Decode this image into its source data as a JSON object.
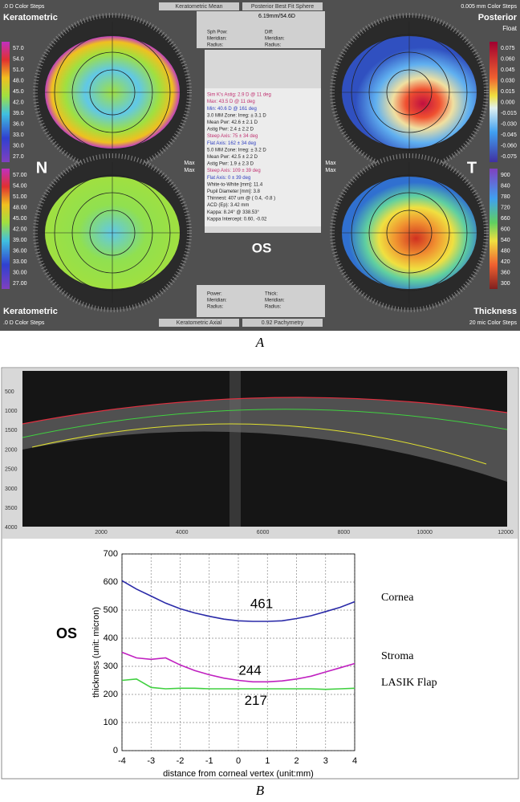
{
  "panel_a": {
    "top_left_steps": ".0 D Color Steps",
    "top_left_title": "Keratometric",
    "top_mid_left": "Keratometric Mean",
    "top_mid_right": "Posterior Best Fit Sphere",
    "bfs": "6.19mm/54.6D",
    "top_left_fields": [
      "Sph Pow:",
      "Meridian:",
      "Radius:"
    ],
    "top_right_fields": [
      "Diff:",
      "Meridian:",
      "Radius:"
    ],
    "top_right_steps": "0.005 mm Color Steps",
    "top_right_title": "Posterior",
    "top_right_sub": "Float",
    "scale_top_left": [
      "57.0",
      "54.0",
      "51.0",
      "48.0",
      "45.0",
      "42.0",
      "39.0",
      "36.0",
      "33.0",
      "30.0",
      "27.0"
    ],
    "scale_bottom_left": [
      "57.00",
      "54.00",
      "51.00",
      "48.00",
      "45.00",
      "42.00",
      "39.00",
      "36.00",
      "33.00",
      "30.00",
      "27.00"
    ],
    "scale_top_right": [
      "0.075",
      "0.060",
      "0.045",
      "0.030",
      "0.015",
      "0.000",
      "-0.015",
      "-0.030",
      "-0.045",
      "-0.060",
      "-0.075"
    ],
    "scale_bottom_right": [
      "900",
      "840",
      "780",
      "720",
      "660",
      "600",
      "540",
      "480",
      "420",
      "360",
      "300"
    ],
    "nasal": "N",
    "temporal": "T",
    "eye": "OS",
    "max_labels": [
      "Max",
      "Max",
      "Max",
      "Max"
    ],
    "info": [
      "Sim K's Astig: 2.9 D @ 11 deg",
      "Max: 43.5 D @ 11 deg",
      "Min: 40.6 D @ 161 deg",
      "3.0 MM Zone:  Irreg:  ± 3.1 D",
      "Mean Pwr: 42.6  ± 2.1 D",
      "Astig Pwr: 2.4  ± 2.2 D",
      "Steep Axis: 75  ± 34 deg",
      "Flat Axis: 162  ± 34 deg",
      "5.0 MM Zone:  Irreg:  ± 3.2 D",
      "Mean Pwr: 42.5  ± 2.2 D",
      "Astig Pwr: 1.9  ± 2.3 D",
      "Steep Axis: 109  ± 39 deg",
      "Flat Axis: 0  ± 39 deg",
      "White-to-White [mm]: 11.4",
      "Pupil Diameter [mm]: 3.8",
      "Thinnest: 407 um @ ( 0.4, -0.8 )",
      "ACD (Ep): 3.42 mm",
      "Kappa: 8.24° @ 338.53°",
      "Kappa Intercept: 0.60, -0.02"
    ],
    "bottom_left_fields": [
      "Power:",
      "Meridian:",
      "Radius:"
    ],
    "bottom_right_fields": [
      "Thick:",
      "Meridian:",
      "Radius:"
    ],
    "bottom_left_title": "Keratometric",
    "bottom_left_steps": ".0 D Color Steps",
    "bottom_mid_left": "Keratometric Axial",
    "bottom_mid_right": "0.92 Pachymetry",
    "bottom_right_title": "Thickness",
    "bottom_right_steps": "20 mic Color Steps",
    "label": "A"
  },
  "oct": {
    "yticks": [
      "500",
      "1000",
      "1500",
      "2000",
      "2500",
      "3000",
      "3500",
      "4000"
    ],
    "xticks": [
      "2000",
      "4000",
      "6000",
      "8000",
      "10000",
      "12000"
    ]
  },
  "chart_data": {
    "type": "line",
    "title": "OS",
    "ylabel": "thickness (unit: micron)",
    "xlabel": "distance from corneal vertex (unit:mm)",
    "x": [
      -4,
      -3.5,
      -3,
      -2.5,
      -2,
      -1.5,
      -1,
      -0.5,
      0,
      0.5,
      1,
      1.5,
      2,
      2.5,
      3,
      3.5,
      4
    ],
    "series": [
      {
        "name": "Cornea",
        "color": "#2a2aa8",
        "values": [
          605,
          575,
          550,
          525,
          505,
          490,
          478,
          468,
          462,
          460,
          460,
          462,
          470,
          480,
          495,
          510,
          530
        ]
      },
      {
        "name": "Stroma",
        "color": "#c020c0",
        "values": [
          350,
          330,
          325,
          330,
          305,
          285,
          270,
          258,
          250,
          245,
          245,
          248,
          255,
          265,
          280,
          295,
          310
        ]
      },
      {
        "name": "LASIK Flap",
        "color": "#40d040",
        "values": [
          250,
          255,
          225,
          220,
          222,
          222,
          220,
          220,
          220,
          220,
          220,
          220,
          220,
          220,
          218,
          220,
          222
        ]
      }
    ],
    "annotations": [
      "461",
      "244",
      "217"
    ],
    "xlim": [
      -4,
      4
    ],
    "ylim": [
      0,
      700
    ],
    "xticks": [
      -4,
      -3,
      -2,
      -1,
      0,
      1,
      2,
      3,
      4
    ],
    "yticks": [
      0,
      100,
      200,
      300,
      400,
      500,
      600,
      700
    ],
    "grid": true
  },
  "panel_b_label": "B"
}
